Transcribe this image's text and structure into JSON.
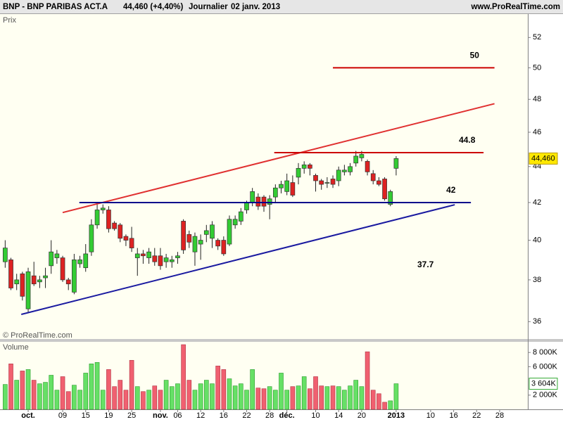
{
  "header": {
    "symbol": "BNP - BNP PARIBAS ACT.A",
    "quote": "44,460 (+4,40%)",
    "period": "Journalier",
    "date": "02 janv. 2013",
    "site": "www.ProRealTime.com"
  },
  "chart_data": [
    {
      "type": "candlestick",
      "panel_label": "Prix",
      "copyright": "© ProRealTime.com",
      "log_scale": true,
      "xlim": [
        -0.9,
        90.9
      ],
      "ylim": [
        35.2,
        53.6
      ],
      "yticks": [
        36,
        38,
        40,
        42,
        44,
        46,
        48,
        50,
        52
      ],
      "up_color": "#33cc33",
      "down_color": "#dd2222",
      "open": [
        38.9,
        39.0,
        37.8,
        38.3,
        36.6,
        38.2,
        37.9,
        38.1,
        38.7,
        39.1,
        39.1,
        38.0,
        37.4,
        38.8,
        38.6,
        39.4,
        40.8,
        41.6,
        41.6,
        40.9,
        40.8,
        40.2,
        40.1,
        39.1,
        39.3,
        39.1,
        39.2,
        39.2,
        38.9,
        38.9,
        39.1,
        41.0,
        40.3,
        39.4,
        39.8,
        40.3,
        40.1,
        40.0,
        40.0,
        39.8,
        40.8,
        41.0,
        41.6,
        42.0,
        42.3,
        42.3,
        41.9,
        42.3,
        42.8,
        42.6,
        43.1,
        43.4,
        43.9,
        44.1,
        43.5,
        43.2,
        43.1,
        43.3,
        43.2,
        43.7,
        43.7,
        44.2,
        44.5,
        44.3,
        43.6,
        43.2,
        43.3,
        41.9,
        43.9
      ],
      "high": [
        40.0,
        39.1,
        38.3,
        38.4,
        38.6,
        38.9,
        38.2,
        38.6,
        40.0,
        39.5,
        39.2,
        38.1,
        39.3,
        39.2,
        39.8,
        41.1,
        41.9,
        41.9,
        41.8,
        41.0,
        40.9,
        40.3,
        40.7,
        39.6,
        39.5,
        39.6,
        39.6,
        39.6,
        39.3,
        39.2,
        39.4,
        41.1,
        40.5,
        40.4,
        40.3,
        40.8,
        41.0,
        40.1,
        40.2,
        41.3,
        41.3,
        41.7,
        42.1,
        42.8,
        42.5,
        42.4,
        42.4,
        43.0,
        43.2,
        43.6,
        43.5,
        44.2,
        44.3,
        44.2,
        43.6,
        43.3,
        43.4,
        43.5,
        44.0,
        44.1,
        44.2,
        44.9,
        44.9,
        44.4,
        43.8,
        43.4,
        43.4,
        42.7,
        44.6
      ],
      "low": [
        38.6,
        37.5,
        37.5,
        37.0,
        36.4,
        37.7,
        37.6,
        37.6,
        38.3,
        38.8,
        37.9,
        37.5,
        37.3,
        38.6,
        38.4,
        39.2,
        40.6,
        41.4,
        40.4,
        40.5,
        39.9,
        39.7,
        39.4,
        38.2,
        38.8,
        38.8,
        38.7,
        38.5,
        38.6,
        38.6,
        38.8,
        39.3,
        39.6,
        38.7,
        39.0,
        39.9,
        39.6,
        39.5,
        39.2,
        39.7,
        40.6,
        40.8,
        41.4,
        41.8,
        41.6,
        41.5,
        41.1,
        42.0,
        42.5,
        42.4,
        42.3,
        43.0,
        43.6,
        43.5,
        42.6,
        42.7,
        42.8,
        42.8,
        42.9,
        43.5,
        43.5,
        44.0,
        44.3,
        43.5,
        43.0,
        42.9,
        42.1,
        41.8,
        43.5
      ],
      "close": [
        39.6,
        37.6,
        38.0,
        37.2,
        38.4,
        37.8,
        38.0,
        38.2,
        39.4,
        39.3,
        38.0,
        37.8,
        39.0,
        39.0,
        39.3,
        40.8,
        41.6,
        41.7,
        40.6,
        40.6,
        40.1,
        40.0,
        39.6,
        39.3,
        39.2,
        39.4,
        38.9,
        38.7,
        39.1,
        39.0,
        39.2,
        39.5,
        39.9,
        40.2,
        40.0,
        40.5,
        40.8,
        39.7,
        39.3,
        41.1,
        41.1,
        41.5,
        42.0,
        42.6,
        41.8,
        41.8,
        42.2,
        42.8,
        43.0,
        43.2,
        42.4,
        43.9,
        44.1,
        43.9,
        43.2,
        43.0,
        43.1,
        43.0,
        43.8,
        43.8,
        44.0,
        44.6,
        44.7,
        43.7,
        43.2,
        43.0,
        42.2,
        42.6,
        44.46
      ],
      "last_price": {
        "value": 44.46,
        "label": "44,460"
      },
      "drawings": [
        {
          "type": "trend",
          "color": "#e03030",
          "x": [
            10,
            85.1
          ],
          "y": [
            41.46,
            47.73
          ]
        },
        {
          "type": "trend",
          "color": "#1a1aa0",
          "x": [
            2.8,
            78.2
          ],
          "y": [
            36.34,
            41.88
          ]
        },
        {
          "type": "hline",
          "color": "#cc0000",
          "x": [
            57,
            85.1
          ],
          "value": 50
        },
        {
          "type": "hline",
          "color": "#cc0000",
          "x": [
            46.8,
            83.2
          ],
          "value": 44.8
        },
        {
          "type": "hline",
          "color": "#00008b",
          "x": [
            12.9,
            81
          ],
          "value": 42
        }
      ],
      "annotations": [
        "37.7"
      ]
    },
    {
      "type": "bar",
      "panel_label": "Volume",
      "xlim": [
        -0.9,
        90.9
      ],
      "ylim": [
        0,
        9500000
      ],
      "yticks": [
        {
          "value": 2000000,
          "label": "2 000K"
        },
        {
          "value": 6000000,
          "label": "6 000K"
        },
        {
          "value": 8000000,
          "label": "8 000K"
        }
      ],
      "xticks": [
        {
          "value": 4,
          "label": "oct."
        },
        {
          "value": 10,
          "label": "09"
        },
        {
          "value": 14,
          "label": "15"
        },
        {
          "value": 18,
          "label": "19"
        },
        {
          "value": 22,
          "label": "25"
        },
        {
          "value": 27,
          "label": "nov."
        },
        {
          "value": 30,
          "label": "06"
        },
        {
          "value": 34,
          "label": "12"
        },
        {
          "value": 38,
          "label": "16"
        },
        {
          "value": 42,
          "label": "22"
        },
        {
          "value": 46,
          "label": "28"
        },
        {
          "value": 49,
          "label": "déc."
        },
        {
          "value": 54,
          "label": "10"
        },
        {
          "value": 58,
          "label": "14"
        },
        {
          "value": 62,
          "label": "20"
        },
        {
          "value": 68,
          "label": "2013"
        },
        {
          "value": 74,
          "label": "10"
        },
        {
          "value": 78,
          "label": "16"
        },
        {
          "value": 82,
          "label": "22"
        },
        {
          "value": 86,
          "label": "28"
        }
      ],
      "values": [
        3500000,
        6400000,
        4100000,
        5400000,
        5600000,
        4100000,
        3600000,
        3800000,
        4800000,
        2700000,
        4600000,
        2500000,
        3400000,
        2700000,
        5100000,
        6400000,
        6600000,
        2700000,
        5600000,
        3200000,
        4100000,
        2700000,
        6900000,
        3200000,
        2500000,
        2700000,
        3300000,
        2700000,
        4100000,
        3200000,
        3600000,
        9100000,
        4100000,
        2700000,
        3600000,
        4100000,
        3600000,
        6100000,
        5600000,
        4300000,
        3300000,
        3600000,
        2700000,
        5600000,
        3000000,
        2900000,
        3200000,
        2700000,
        5100000,
        2700000,
        3200000,
        3300000,
        4600000,
        2900000,
        4600000,
        3300000,
        3200000,
        3300000,
        3200000,
        2700000,
        3300000,
        4100000,
        3200000,
        8100000,
        2700000,
        2200000,
        1000000,
        1200000,
        3604000
      ],
      "last_value": {
        "value": 3604000,
        "label": "3 604K"
      }
    }
  ]
}
